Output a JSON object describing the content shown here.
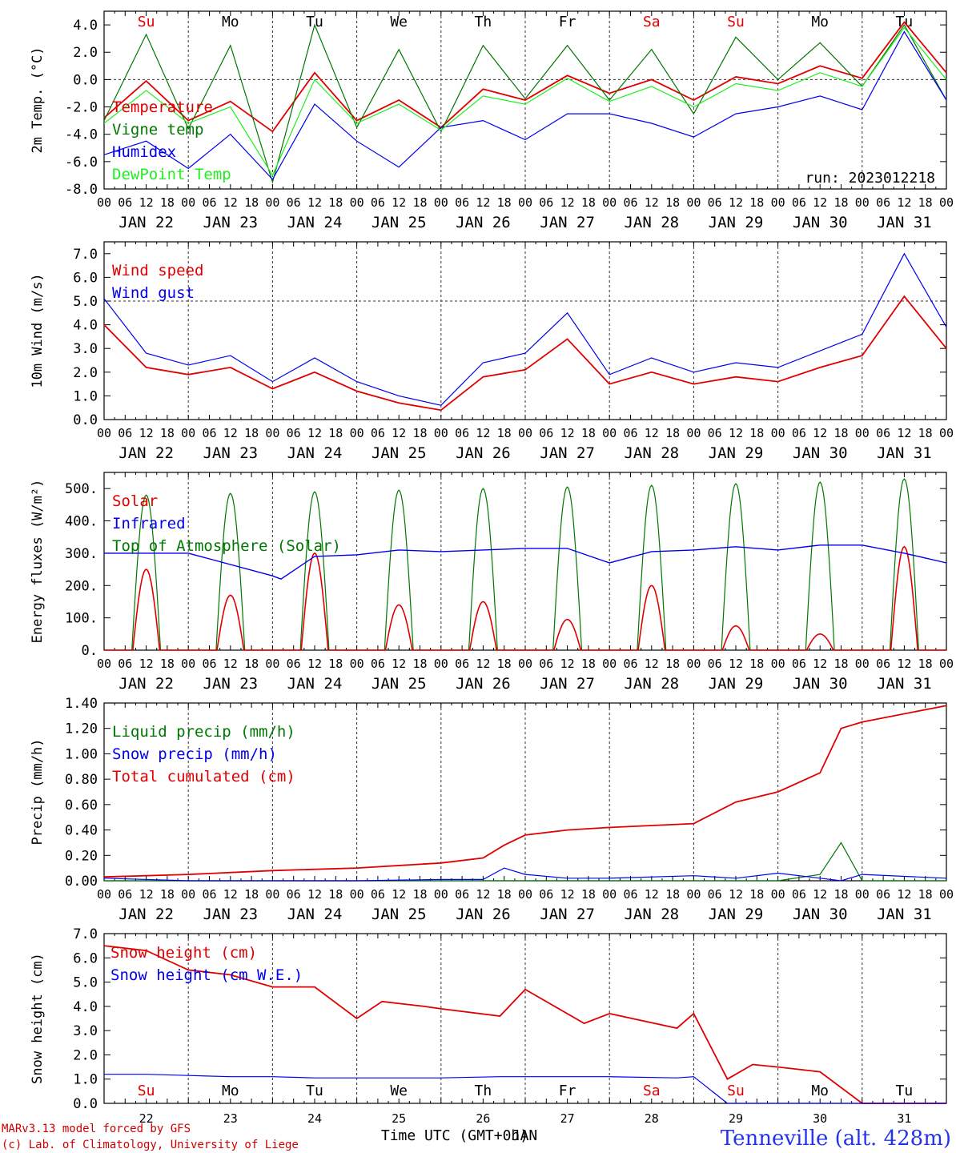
{
  "colors": {
    "red": "#e00000",
    "green": "#007700",
    "blue": "#0000ee",
    "lightgreen": "#22ee22",
    "axis": "#000000",
    "sun_sat": "#e00000"
  },
  "hour_labels": [
    "00",
    "06",
    "12",
    "18"
  ],
  "hour_labels_end": "00",
  "day_labels": [
    "JAN 22",
    "JAN 23",
    "JAN 24",
    "JAN 25",
    "JAN 26",
    "JAN 27",
    "JAN 28",
    "JAN 29",
    "JAN 30",
    "JAN 31"
  ],
  "day_names": [
    "Su",
    "Mo",
    "Tu",
    "We",
    "Th",
    "Fr",
    "Sa",
    "Su",
    "Mo",
    "Tu"
  ],
  "day_name_red": [
    true,
    false,
    false,
    false,
    false,
    false,
    true,
    true,
    false,
    false
  ],
  "bottom_day_numbers": [
    "22",
    "23",
    "24",
    "25",
    "26",
    "27",
    "28",
    "29",
    "30",
    "31"
  ],
  "bottom_xlabel": "Time UTC (GMT+0h)",
  "bottom_xlabel_overlap": "JAN",
  "run_label": "run: 2023012218",
  "station": "Tenneville (alt. 428m)",
  "footer_line1": "MARv3.13 model forced by GFS",
  "footer_line2": "(c) Lab. of Climatology, University of Liege",
  "chart_data": [
    {
      "type": "line",
      "ylabel": "2m Temp. (°C)",
      "ylim": [
        -8,
        5
      ],
      "yticks": [
        4.0,
        2.0,
        0.0,
        -2.0,
        -4.0,
        -6.0,
        -8.0
      ],
      "ytick_labels": [
        "4.0",
        "2.0",
        "0.0",
        "-2.0",
        "-4.0",
        "-6.0",
        "-8.0"
      ],
      "refline": 0,
      "x_days": [
        0,
        0.5,
        1,
        1.5,
        2,
        2.5,
        3,
        3.5,
        4,
        4.5,
        5,
        5.5,
        6,
        6.5,
        7,
        7.5,
        8,
        8.5,
        9,
        9.5,
        10
      ],
      "series": [
        {
          "name": "Temperature",
          "color": "red",
          "values": [
            -2.8,
            -0.1,
            -3.0,
            -1.6,
            -3.8,
            0.5,
            -3.0,
            -1.5,
            -3.5,
            -0.7,
            -1.5,
            0.3,
            -1.0,
            0.0,
            -1.5,
            0.2,
            -0.3,
            1.0,
            0.1,
            4.2,
            0.5
          ]
        },
        {
          "name": "Vigne temp",
          "color": "green",
          "values": [
            -3.0,
            3.3,
            -3.6,
            2.5,
            -7.5,
            4.0,
            -3.5,
            2.2,
            -3.8,
            2.5,
            -1.4,
            2.5,
            -1.5,
            2.2,
            -2.5,
            3.1,
            0.0,
            2.7,
            -0.5,
            4.0,
            -1.5
          ]
        },
        {
          "name": "Humidex",
          "color": "blue",
          "values": [
            -5.5,
            -4.5,
            -6.5,
            -4.0,
            -7.3,
            -1.8,
            -4.5,
            -6.4,
            -3.5,
            -3.0,
            -4.4,
            -2.5,
            -2.5,
            -3.2,
            -4.2,
            -2.5,
            -2.0,
            -1.2,
            -2.2,
            3.5,
            -1.5
          ]
        },
        {
          "name": "DewPoint Temp",
          "color": "lightgreen",
          "values": [
            -3.2,
            -0.8,
            -3.2,
            -2.0,
            -7.0,
            0.0,
            -3.2,
            -1.8,
            -3.7,
            -1.2,
            -1.8,
            0.1,
            -1.6,
            -0.5,
            -2.0,
            -0.3,
            -0.8,
            0.5,
            -0.5,
            3.8,
            0.0
          ]
        }
      ]
    },
    {
      "type": "line",
      "ylabel": "10m Wind (m/s)",
      "ylim": [
        0,
        7.5
      ],
      "yticks": [
        0,
        1,
        2,
        3,
        4,
        5,
        6,
        7
      ],
      "ytick_labels": [
        "0.0",
        "1.0",
        "2.0",
        "3.0",
        "4.0",
        "5.0",
        "6.0",
        "7.0"
      ],
      "refline": 5,
      "x_days": [
        0,
        0.5,
        1,
        1.5,
        2,
        2.5,
        3,
        3.5,
        4,
        4.5,
        5,
        5.5,
        6,
        6.5,
        7,
        7.5,
        8,
        8.5,
        9,
        9.5,
        10
      ],
      "series": [
        {
          "name": "Wind speed",
          "color": "red",
          "values": [
            4.0,
            2.2,
            1.9,
            2.2,
            1.3,
            2.0,
            1.2,
            0.7,
            0.4,
            1.8,
            2.1,
            3.4,
            1.5,
            2.0,
            1.5,
            1.8,
            1.6,
            2.2,
            2.7,
            5.2,
            3.0
          ]
        },
        {
          "name": "Wind gust",
          "color": "blue",
          "values": [
            5.1,
            2.8,
            2.3,
            2.7,
            1.6,
            2.6,
            1.6,
            1.0,
            0.6,
            2.4,
            2.8,
            4.5,
            1.9,
            2.6,
            2.0,
            2.4,
            2.2,
            2.9,
            3.6,
            7.0,
            3.9
          ]
        }
      ]
    },
    {
      "type": "line",
      "ylabel": "Energy fluxes (W/m²)",
      "ylim": [
        0,
        550
      ],
      "yticks": [
        0,
        100,
        200,
        300,
        400,
        500
      ],
      "ytick_labels": [
        "0.",
        "100.",
        "200.",
        "300.",
        "400.",
        "500."
      ],
      "refline": null,
      "solar_days": [
        0.5,
        1.5,
        2.5,
        3.5,
        4.5,
        5.5,
        6.5,
        7.5,
        8.5,
        9.5
      ],
      "solar_peaks": [
        250,
        170,
        300,
        140,
        150,
        95,
        200,
        75,
        50,
        320
      ],
      "toa_peaks": [
        480,
        485,
        490,
        495,
        500,
        505,
        510,
        515,
        520,
        530
      ],
      "infrared_days": [
        0,
        1,
        2,
        2.1,
        2.5,
        3,
        3.5,
        4,
        5,
        5.5,
        6,
        6.5,
        7,
        7.5,
        8,
        8.5,
        9,
        9.5,
        10
      ],
      "infrared_values": [
        300,
        300,
        230,
        220,
        290,
        295,
        310,
        305,
        315,
        315,
        270,
        305,
        310,
        320,
        310,
        325,
        325,
        300,
        270
      ],
      "series": [
        {
          "name": "Solar",
          "color": "red"
        },
        {
          "name": "Infrared",
          "color": "blue"
        },
        {
          "name": "Top of Atmosphere (Solar)",
          "color": "green"
        }
      ]
    },
    {
      "type": "line",
      "ylabel": "Precip (mm/h)",
      "ylim": [
        0,
        1.4
      ],
      "yticks": [
        0,
        0.2,
        0.4,
        0.6,
        0.8,
        1.0,
        1.2,
        1.4
      ],
      "ytick_labels": [
        "0.00",
        "0.20",
        "0.40",
        "0.60",
        "0.80",
        "1.00",
        "1.20",
        "1.40"
      ],
      "refline": null,
      "x_days": [
        0,
        1,
        2,
        3,
        4,
        4.5,
        4.75,
        5,
        5.5,
        6,
        7,
        7.5,
        8,
        8.5,
        8.75,
        9,
        10
      ],
      "series": [
        {
          "name": "Liquid precip (mm/h)",
          "color": "green",
          "values": [
            0,
            0,
            0,
            0,
            0,
            0,
            0,
            0,
            0,
            0,
            0,
            0,
            0,
            0.05,
            0.3,
            0,
            0
          ]
        },
        {
          "name": "Snow precip (mm/h)",
          "color": "blue",
          "values": [
            0.02,
            0,
            0,
            0,
            0.01,
            0.01,
            0.1,
            0.05,
            0.02,
            0.02,
            0.04,
            0.02,
            0.06,
            0.02,
            0,
            0.05,
            0.02
          ]
        },
        {
          "name": "Total cumulated (cm)",
          "color": "red",
          "values": [
            0.03,
            0.05,
            0.08,
            0.1,
            0.14,
            0.18,
            0.28,
            0.36,
            0.4,
            0.42,
            0.45,
            0.62,
            0.7,
            0.85,
            1.2,
            1.25,
            1.38
          ]
        }
      ]
    },
    {
      "type": "line",
      "ylabel": "Snow height (cm)",
      "ylim": [
        0,
        7
      ],
      "yticks": [
        0,
        1,
        2,
        3,
        4,
        5,
        6,
        7
      ],
      "ytick_labels": [
        "0.0",
        "1.0",
        "2.0",
        "3.0",
        "4.0",
        "5.0",
        "6.0",
        "7.0"
      ],
      "refline": null,
      "x_days": [
        0,
        0.5,
        1,
        1.5,
        2,
        2.5,
        3,
        3.3,
        3.8,
        4,
        4.7,
        5,
        5.7,
        6,
        6.8,
        7,
        7.4,
        7.7,
        8.0,
        8.5,
        9.0,
        10
      ],
      "series": [
        {
          "name": "Snow height (cm)",
          "color": "red",
          "values": [
            6.5,
            6.3,
            5.5,
            5.3,
            4.8,
            4.8,
            3.5,
            4.2,
            4.0,
            3.9,
            3.6,
            4.7,
            3.3,
            3.7,
            3.1,
            3.7,
            1.0,
            1.6,
            1.5,
            1.3,
            0,
            0
          ]
        },
        {
          "name": "Snow height (cm W.E.)",
          "color": "blue",
          "values": [
            1.2,
            1.2,
            1.15,
            1.1,
            1.1,
            1.05,
            1.05,
            1.05,
            1.05,
            1.05,
            1.1,
            1.1,
            1.1,
            1.1,
            1.05,
            1.1,
            0,
            0,
            0,
            0,
            0,
            0
          ]
        }
      ]
    }
  ]
}
